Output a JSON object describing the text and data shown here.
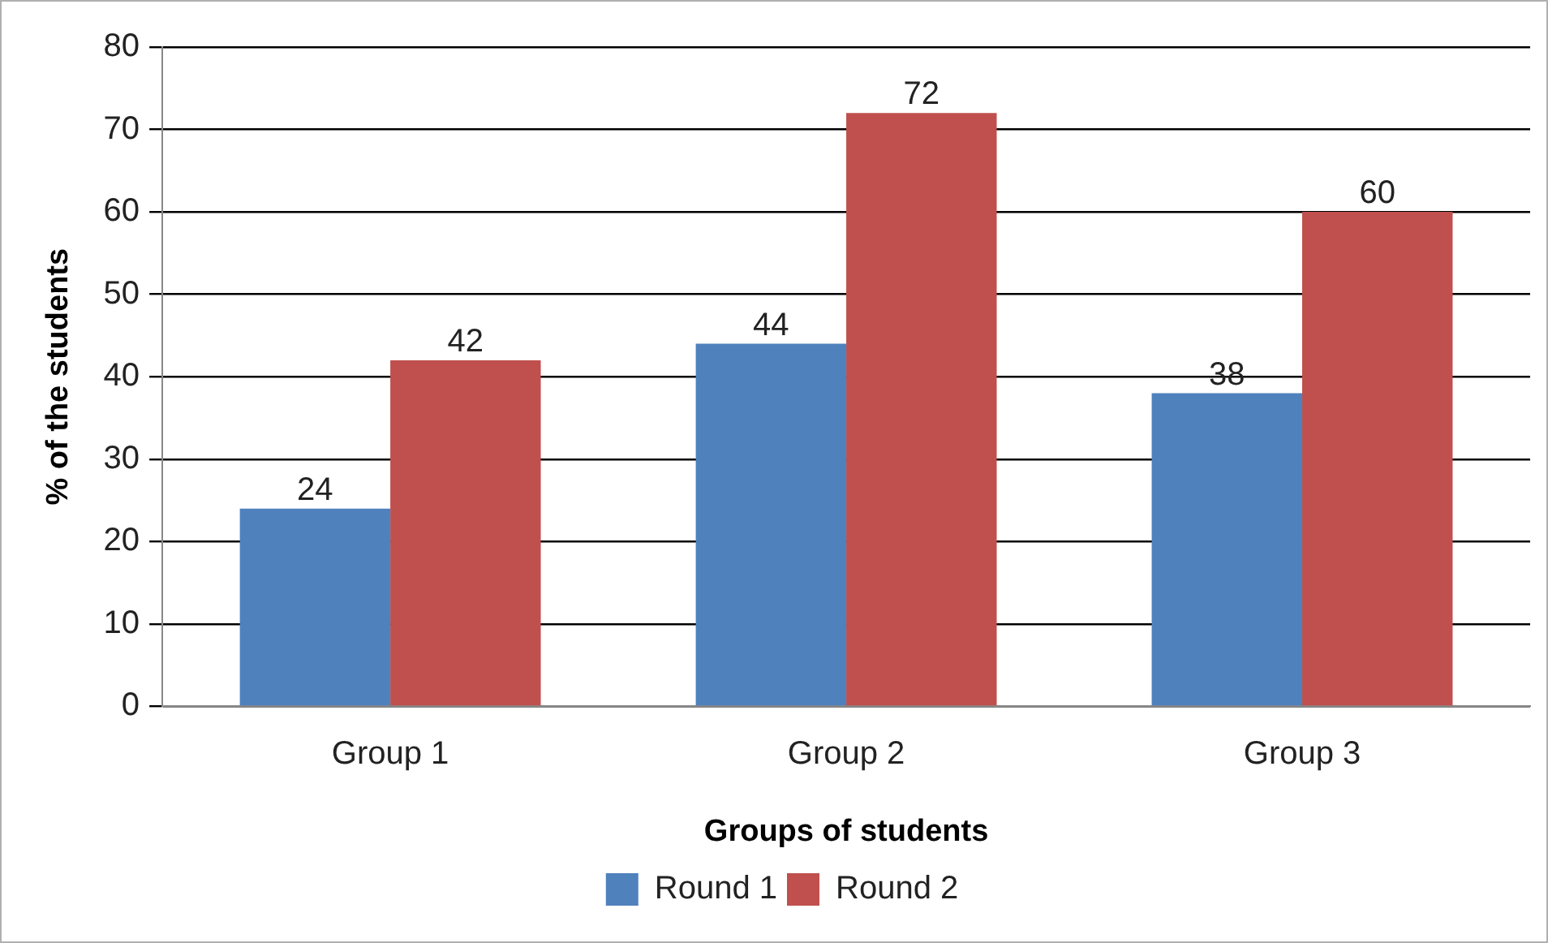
{
  "chart_data": {
    "type": "bar",
    "xlabel": "Groups of students",
    "ylabel": "% of the students",
    "categories": [
      "Group 1",
      "Group 2",
      "Group 3"
    ],
    "series": [
      {
        "name": "Round 1",
        "color": "#4f81bd",
        "values": [
          24,
          44,
          38
        ]
      },
      {
        "name": "Round 2",
        "color": "#c0504d",
        "values": [
          42,
          72,
          60
        ]
      }
    ],
    "ylim": [
      0,
      80
    ],
    "yticks": [
      0,
      10,
      20,
      30,
      40,
      50,
      60,
      70,
      80
    ],
    "grid": "y",
    "legend": "bottom",
    "data_labels": true
  }
}
